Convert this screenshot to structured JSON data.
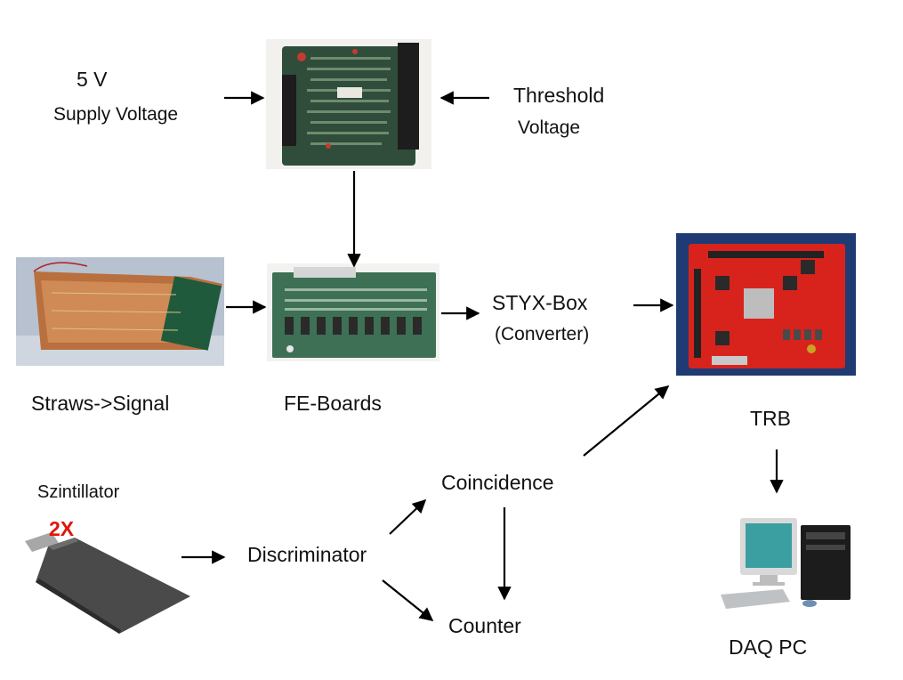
{
  "labels": {
    "supply_v": "5 V",
    "supply_label": "Supply Voltage",
    "threshold": "Threshold",
    "threshold_voltage": "Voltage",
    "straws": "Straws->Signal",
    "fe_boards": "FE-Boards",
    "styx": "STYX-Box",
    "converter": "(Converter)",
    "trb": "TRB",
    "szintillator": "Szintillator",
    "times": "2X",
    "discriminator": "Discriminator",
    "coincidence": "Coincidence",
    "counter": "Counter",
    "daq": "DAQ PC"
  },
  "colors": {
    "text": "#111111",
    "accent_red": "#e0150a",
    "arrow": "#000000"
  },
  "icons": [
    "circuit-board-photo",
    "straw-detector-photo",
    "fe-board-photo",
    "trb-board-photo",
    "scintillator-paddle",
    "desktop-computer"
  ]
}
